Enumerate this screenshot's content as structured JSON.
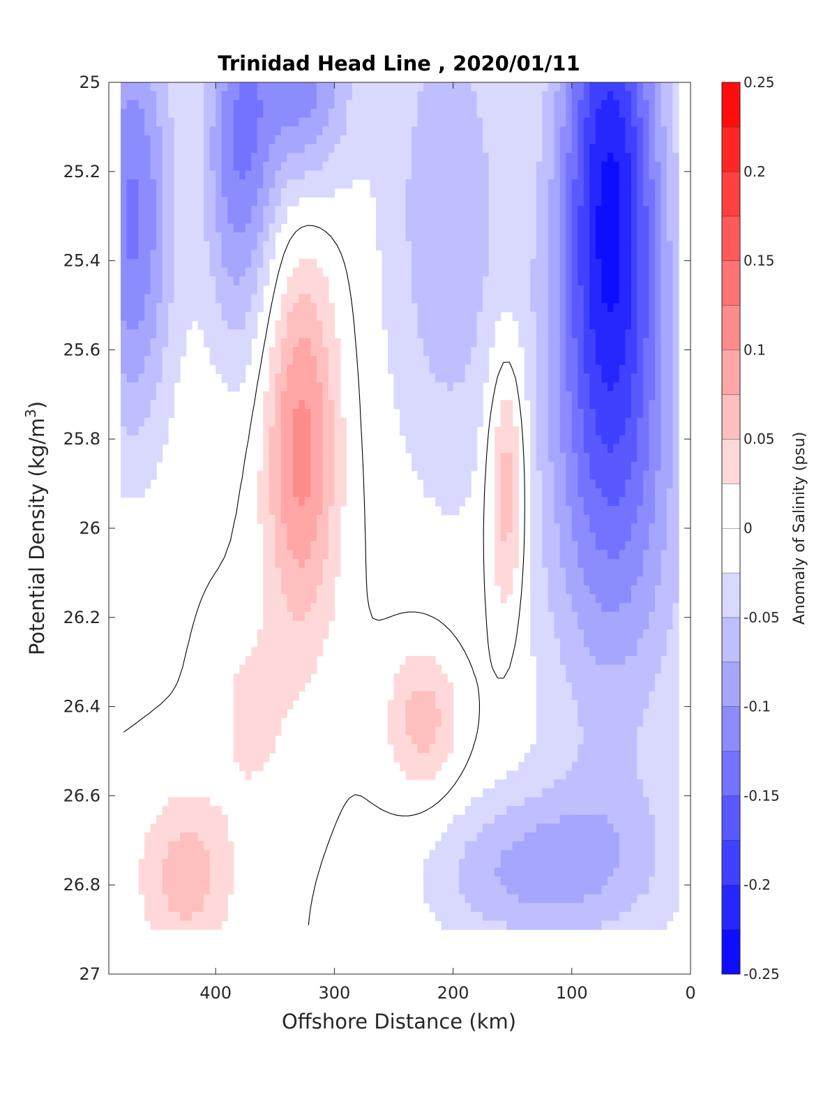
{
  "chart_data": {
    "type": "filled-contour",
    "title": "Trinidad Head Line , 2020/01/11",
    "xlabel": "Offshore Distance (km)",
    "ylabel": "Potential Density (kg/m³)",
    "ylabel_main": "Potential Density (kg/m",
    "ylabel_sup": "3",
    "ylabel_close": ")",
    "colorbar_label": "Anomaly of Salinity (psu)",
    "xlim": [
      490,
      0
    ],
    "ylim": [
      25,
      27
    ],
    "y_reversed": true,
    "x_reversed": true,
    "x_ticks": [
      {
        "value": 400,
        "label": "400"
      },
      {
        "value": 300,
        "label": "300"
      },
      {
        "value": 200,
        "label": "200"
      },
      {
        "value": 100,
        "label": "100"
      },
      {
        "value": 0,
        "label": "0"
      }
    ],
    "y_ticks": [
      {
        "value": 25.0,
        "label": "25"
      },
      {
        "value": 25.2,
        "label": "25.2"
      },
      {
        "value": 25.4,
        "label": "25.4"
      },
      {
        "value": 25.6,
        "label": "25.6"
      },
      {
        "value": 25.8,
        "label": "25.8"
      },
      {
        "value": 26.0,
        "label": "26"
      },
      {
        "value": 26.2,
        "label": "26.2"
      },
      {
        "value": 26.4,
        "label": "26.4"
      },
      {
        "value": 26.6,
        "label": "26.6"
      },
      {
        "value": 26.8,
        "label": "26.8"
      },
      {
        "value": 27.0,
        "label": "27"
      }
    ],
    "colorbar": {
      "limits": [
        -0.25,
        0.25
      ],
      "step": 0.025,
      "ticks": [
        {
          "value": 0.25,
          "label": "0.25"
        },
        {
          "value": 0.2,
          "label": "0.2"
        },
        {
          "value": 0.15,
          "label": "0.15"
        },
        {
          "value": 0.1,
          "label": "0.1"
        },
        {
          "value": 0.05,
          "label": "0.05"
        },
        {
          "value": 0,
          "label": "0"
        },
        {
          "value": -0.05,
          "label": "-0.05"
        },
        {
          "value": -0.1,
          "label": "-0.1"
        },
        {
          "value": -0.15,
          "label": "-0.15"
        },
        {
          "value": -0.2,
          "label": "-0.2"
        },
        {
          "value": -0.25,
          "label": "-0.25"
        }
      ],
      "negative_color": "#0000ff",
      "positive_color": "#ff0000",
      "neutral_color": "#ffffff"
    },
    "data_bounds": {
      "x": [
        10,
        480
      ],
      "y_bottom": 26.9
    },
    "features": [
      {
        "name": "neg-core-left",
        "x": 470,
        "y": 25.3,
        "sigma_x": 25,
        "sigma_y": 0.35,
        "amp": -0.13
      },
      {
        "name": "neg-core-380",
        "x": 380,
        "y": 25.15,
        "sigma_x": 22,
        "sigma_y": 0.32,
        "amp": -0.12
      },
      {
        "name": "neg-core-320",
        "x": 325,
        "y": 25.0,
        "sigma_x": 28,
        "sigma_y": 0.18,
        "amp": -0.11
      },
      {
        "name": "neg-band-200",
        "x": 205,
        "y": 25.3,
        "sigma_x": 40,
        "sigma_y": 0.45,
        "amp": -0.07
      },
      {
        "name": "neg-core-60",
        "x": 68,
        "y": 25.2,
        "sigma_x": 30,
        "sigma_y": 0.45,
        "amp": -0.2
      },
      {
        "name": "neg-plume-60",
        "x": 65,
        "y": 25.9,
        "sigma_x": 48,
        "sigma_y": 0.45,
        "amp": -0.1
      },
      {
        "name": "neg-deep-90",
        "x": 90,
        "y": 26.75,
        "sigma_x": 60,
        "sigma_y": 0.14,
        "amp": -0.06
      },
      {
        "name": "neg-deep-170",
        "x": 165,
        "y": 26.78,
        "sigma_x": 50,
        "sigma_y": 0.12,
        "amp": -0.045
      },
      {
        "name": "pos-core-330",
        "x": 328,
        "y": 25.82,
        "sigma_x": 22,
        "sigma_y": 0.3,
        "amp": 0.11
      },
      {
        "name": "pos-core-155",
        "x": 155,
        "y": 25.9,
        "sigma_x": 12,
        "sigma_y": 0.22,
        "amp": 0.09
      },
      {
        "name": "pos-patch-360",
        "x": 370,
        "y": 26.42,
        "sigma_x": 20,
        "sigma_y": 0.14,
        "amp": 0.035
      },
      {
        "name": "pos-patch-225",
        "x": 225,
        "y": 26.43,
        "sigma_x": 22,
        "sigma_y": 0.12,
        "amp": 0.065
      },
      {
        "name": "pos-patch-425",
        "x": 425,
        "y": 26.78,
        "sigma_x": 28,
        "sigma_y": 0.13,
        "amp": 0.065
      }
    ]
  }
}
